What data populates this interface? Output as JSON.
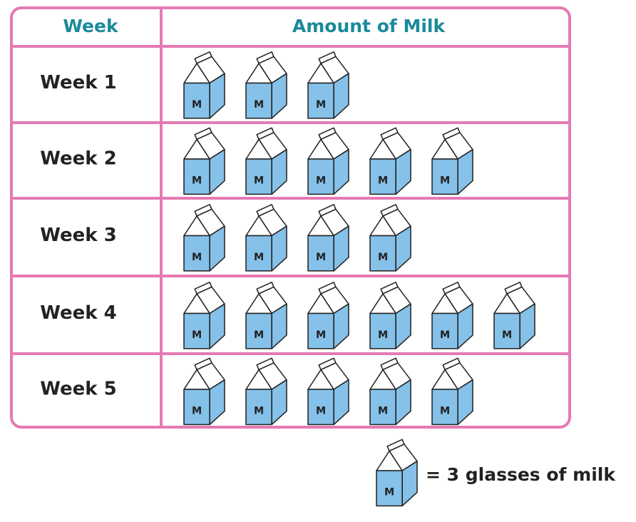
{
  "chart_data": {
    "type": "pictograph",
    "header": {
      "category": "Week",
      "value": "Amount of Milk"
    },
    "categories": [
      "Week 1",
      "Week 2",
      "Week 3",
      "Week 4",
      "Week 5"
    ],
    "values": [
      3,
      5,
      4,
      6,
      5
    ],
    "icon_label": "M",
    "key": "= 3 glasses of milk",
    "color": "#85c1e9",
    "border_color": "#e57ab4"
  }
}
